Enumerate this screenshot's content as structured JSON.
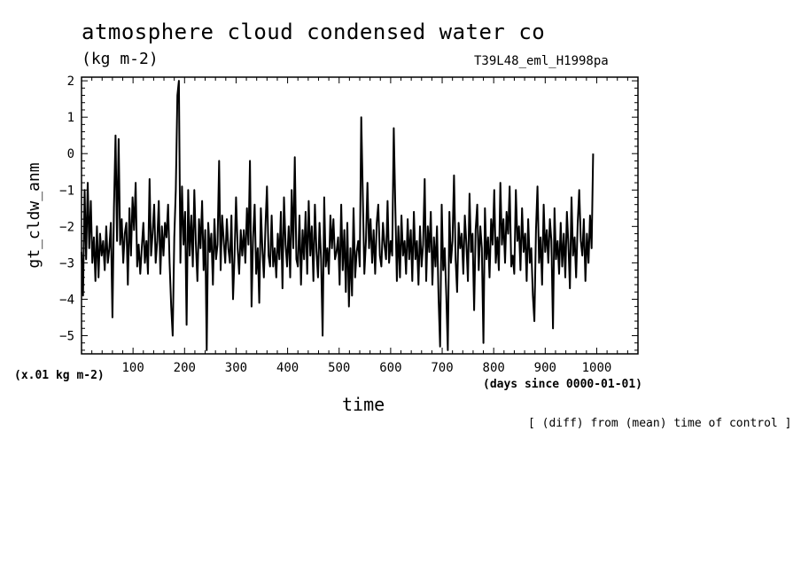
{
  "chart_data": {
    "type": "line",
    "title": "atmosphere cloud condensed water co",
    "units": "(kg m-2)",
    "experiment": "T39L48_eml_H1998pa",
    "ylabel": "gt_cldw_anm",
    "y_scale_note": "(x.01 kg m-2)",
    "xlabel": "time",
    "x_units": "(days since 0000-01-01)",
    "note": "[ (diff) from (mean) time of control ]",
    "xlim": [
      0,
      1080
    ],
    "ylim": [
      -5.5,
      2.1
    ],
    "x_ticks": [
      100,
      200,
      300,
      400,
      500,
      600,
      700,
      800,
      900,
      1000
    ],
    "y_ticks": [
      2,
      1,
      0,
      -1,
      -2,
      -3,
      -4,
      -5
    ],
    "y_tick_labels": [
      "2",
      "1",
      "0",
      "−1",
      "−2",
      "−3",
      "−4",
      "−5"
    ],
    "grid": false,
    "series": [
      {
        "x_start": 0,
        "x_step": 3,
        "values": [
          -2.7,
          -3.9,
          -1.0,
          -2.9,
          -0.8,
          -2.6,
          -1.3,
          -3.0,
          -2.3,
          -3.5,
          -2.0,
          -3.4,
          -2.2,
          -2.8,
          -2.4,
          -3.2,
          -2.0,
          -3.0,
          -2.6,
          -1.9,
          -4.5,
          -1.5,
          0.5,
          -2.4,
          0.4,
          -2.5,
          -1.8,
          -3.0,
          -2.2,
          -1.9,
          -3.6,
          -1.5,
          -2.8,
          -1.2,
          -2.1,
          -0.8,
          -3.1,
          -2.5,
          -3.3,
          -2.6,
          -1.9,
          -3.0,
          -2.4,
          -3.3,
          -0.7,
          -2.8,
          -2.2,
          -1.4,
          -3.0,
          -2.4,
          -1.3,
          -3.3,
          -2.0,
          -2.8,
          -1.9,
          -2.3,
          -1.4,
          -3.0,
          -4.2,
          -5.0,
          -2.3,
          -1.0,
          1.6,
          2.0,
          -3.0,
          -0.9,
          -2.5,
          -1.6,
          -4.7,
          -1.0,
          -2.8,
          -1.7,
          -3.1,
          -1.0,
          -2.5,
          -3.5,
          -1.8,
          -2.6,
          -1.3,
          -3.2,
          -2.1,
          -5.4,
          -1.9,
          -2.7,
          -2.2,
          -3.6,
          -1.8,
          -2.9,
          -2.5,
          -0.2,
          -3.2,
          -1.7,
          -2.4,
          -3.0,
          -1.8,
          -2.6,
          -3.0,
          -1.7,
          -4.0,
          -2.8,
          -1.2,
          -2.6,
          -3.3,
          -2.1,
          -2.8,
          -2.1,
          -3.0,
          -1.5,
          -2.5,
          -0.2,
          -4.2,
          -2.3,
          -1.4,
          -3.3,
          -2.6,
          -4.1,
          -1.5,
          -2.6,
          -3.4,
          -2.0,
          -0.9,
          -2.8,
          -3.1,
          -1.7,
          -3.1,
          -2.6,
          -3.4,
          -2.2,
          -2.9,
          -1.6,
          -3.7,
          -1.2,
          -2.5,
          -3.1,
          -2.0,
          -3.4,
          -1.0,
          -2.6,
          -0.1,
          -2.9,
          -3.1,
          -1.7,
          -3.6,
          -2.1,
          -2.9,
          -1.6,
          -3.3,
          -1.3,
          -2.8,
          -2.0,
          -3.5,
          -1.4,
          -2.7,
          -3.4,
          -1.9,
          -2.9,
          -5.0,
          -1.2,
          -3.1,
          -2.6,
          -3.3,
          -1.7,
          -2.6,
          -1.8,
          -2.9,
          -2.7,
          -2.3,
          -3.6,
          -1.4,
          -3.2,
          -2.1,
          -3.8,
          -1.9,
          -4.2,
          -2.6,
          -3.9,
          -1.5,
          -3.4,
          -2.7,
          -2.4,
          -3.1,
          1.0,
          -1.2,
          -3.3,
          -2.4,
          -0.8,
          -2.6,
          -1.8,
          -3.0,
          -2.1,
          -3.3,
          -1.9,
          -1.4,
          -2.8,
          -3.1,
          -1.9,
          -2.5,
          -2.9,
          -1.3,
          -3.0,
          -2.4,
          -2.8,
          0.7,
          -1.4,
          -3.5,
          -2.0,
          -3.4,
          -1.7,
          -2.8,
          -2.4,
          -3.3,
          -1.8,
          -2.9,
          -2.1,
          -3.5,
          -1.6,
          -2.9,
          -2.4,
          -3.6,
          -2.0,
          -3.1,
          -2.5,
          -0.7,
          -3.5,
          -2.0,
          -2.7,
          -1.6,
          -3.6,
          -2.3,
          -3.1,
          -2.0,
          -4.0,
          -5.3,
          -1.4,
          -3.2,
          -2.6,
          -3.9,
          -5.4,
          -1.6,
          -3.0,
          -2.4,
          -0.6,
          -2.9,
          -3.8,
          -1.9,
          -2.6,
          -2.2,
          -3.3,
          -1.7,
          -2.5,
          -3.5,
          -1.1,
          -2.7,
          -2.2,
          -4.3,
          -2.1,
          -1.4,
          -3.2,
          -2.0,
          -2.6,
          -5.2,
          -1.5,
          -2.9,
          -2.3,
          -3.4,
          -1.8,
          -2.5,
          -1.0,
          -3.0,
          -2.3,
          -3.2,
          -0.8,
          -2.5,
          -1.8,
          -3.0,
          -1.6,
          -2.2,
          -0.9,
          -3.1,
          -2.8,
          -3.3,
          -1.0,
          -2.4,
          -2.0,
          -3.2,
          -1.5,
          -2.7,
          -2.2,
          -3.5,
          -1.8,
          -3.0,
          -2.6,
          -3.9,
          -4.6,
          -2.1,
          -0.9,
          -3.0,
          -2.3,
          -3.6,
          -1.4,
          -2.7,
          -2.1,
          -3.0,
          -1.8,
          -2.4,
          -4.8,
          -1.5,
          -2.9,
          -2.4,
          -3.3,
          -1.9,
          -3.1,
          -2.2,
          -3.4,
          -1.6,
          -2.5,
          -3.7,
          -1.2,
          -2.8,
          -2.3,
          -3.4,
          -1.9,
          -1.0,
          -2.4,
          -2.8,
          -1.8,
          -3.5,
          -2.2,
          -3.0,
          -1.7,
          -2.6,
          0.0
        ]
      }
    ]
  }
}
